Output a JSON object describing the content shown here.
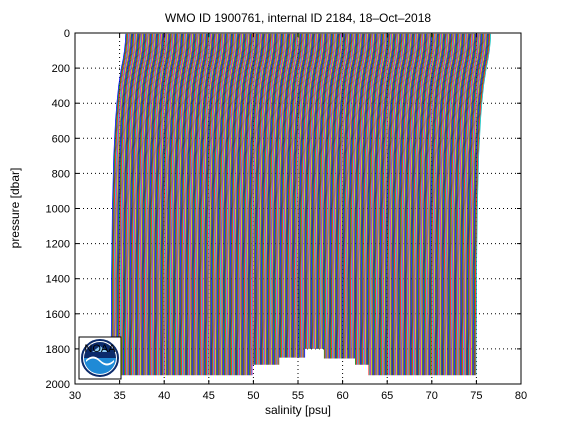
{
  "chart_data": {
    "type": "line",
    "title": "WMO ID 1900761, internal ID 2184, 18–Oct–2018",
    "xlabel": "salinity [psu]",
    "ylabel": "pressure [dbar]",
    "xlim": [
      30,
      80
    ],
    "ylim": [
      0,
      2000
    ],
    "y_reversed": true,
    "grid": true,
    "x_ticks": [
      30,
      35,
      40,
      45,
      50,
      55,
      60,
      65,
      70,
      75,
      80
    ],
    "y_ticks": [
      0,
      200,
      400,
      600,
      800,
      1000,
      1200,
      1400,
      1600,
      1800,
      2000
    ],
    "x_tick_labels": [
      "30",
      "35",
      "40",
      "45",
      "50",
      "55",
      "60",
      "65",
      "70",
      "75",
      "80"
    ],
    "y_tick_labels": [
      "0",
      "200",
      "400",
      "600",
      "800",
      "1000",
      "1200",
      "1400",
      "1600",
      "1800",
      "2000"
    ],
    "series_style": "waterfall: each successive profile offset by +0.1 psu",
    "profile_count": 410,
    "profile_offset_psu": 0.1,
    "series_colors": [
      "#0000ff",
      "#008000",
      "#ff0000",
      "#00bfbf",
      "#bf00bf",
      "#bfbf00",
      "#404040"
    ],
    "representative_profile": {
      "pressure": [
        5,
        50,
        100,
        150,
        200,
        300,
        400,
        500,
        600,
        700,
        800,
        1000,
        1200,
        1400,
        1600,
        1800,
        1950
      ],
      "salinity_offset": [
        1.1,
        1.05,
        0.95,
        0.8,
        0.6,
        0.3,
        0.1,
        -0.05,
        -0.15,
        -0.25,
        -0.3,
        -0.4,
        -0.45,
        -0.5,
        -0.5,
        -0.55,
        -0.55
      ]
    },
    "profile_max_pressure_gaps": [
      {
        "x_range": [
          50.5,
          53.5
        ],
        "max_pressure": 1890
      },
      {
        "x_range": [
          53.5,
          56.4
        ],
        "max_pressure": 1850
      },
      {
        "x_range": [
          56.4,
          58.5
        ],
        "max_pressure": 1800
      },
      {
        "x_range": [
          58.5,
          62.0
        ],
        "max_pressure": 1855
      },
      {
        "x_range": [
          62.0,
          63.5
        ],
        "max_pressure": 1890
      }
    ]
  },
  "logo": {
    "name": "noaa-logo",
    "text": "NOAA",
    "colors": {
      "navy": "#0b2a6b",
      "blue": "#1f8ad6",
      "light": "#8cc8f0"
    }
  }
}
